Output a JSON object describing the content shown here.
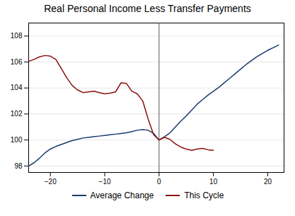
{
  "chart_data": {
    "type": "line",
    "title": "Real Personal Income Less Transfer Payments",
    "x": [
      -24,
      -23,
      -22,
      -21,
      -20,
      -19,
      -18,
      -17,
      -16,
      -15,
      -14,
      -13,
      -12,
      -11,
      -10,
      -9,
      -8,
      -7,
      -6,
      -5,
      -4,
      -3,
      -2,
      -1,
      0,
      1,
      2,
      3,
      4,
      5,
      6,
      7,
      8,
      9,
      10,
      11,
      12,
      13,
      14,
      15,
      16,
      17,
      18,
      19,
      20,
      21,
      22
    ],
    "series": [
      {
        "name": "Average Change",
        "color": "#1a3a6e",
        "values": [
          98.0,
          98.25,
          98.6,
          99.0,
          99.3,
          99.5,
          99.65,
          99.8,
          99.95,
          100.05,
          100.15,
          100.2,
          100.25,
          100.3,
          100.35,
          100.4,
          100.45,
          100.5,
          100.55,
          100.65,
          100.75,
          100.8,
          100.75,
          100.5,
          100.0,
          100.25,
          100.55,
          101.0,
          101.45,
          101.85,
          102.3,
          102.75,
          103.1,
          103.45,
          103.75,
          104.05,
          104.4,
          104.75,
          105.1,
          105.45,
          105.8,
          106.1,
          106.4,
          106.65,
          106.9,
          107.1,
          107.3
        ]
      },
      {
        "name": "This Cycle",
        "color": "#8b1010",
        "values": [
          106.05,
          106.2,
          106.4,
          106.5,
          106.45,
          106.2,
          105.5,
          104.8,
          104.2,
          103.85,
          103.65,
          103.7,
          103.75,
          103.65,
          103.55,
          103.6,
          103.7,
          104.4,
          104.35,
          103.75,
          103.55,
          103.0,
          101.6,
          100.4,
          100.0,
          100.2,
          100.05,
          99.7,
          99.45,
          99.3,
          99.2,
          99.3,
          99.35,
          99.25,
          99.2,
          null,
          null,
          null,
          null,
          null,
          null,
          null,
          null,
          null,
          null,
          null,
          null
        ]
      }
    ],
    "vline_x": 0,
    "xlim": [
      -24,
      23
    ],
    "xticks": [
      -20,
      -10,
      0,
      10,
      20
    ],
    "ylim": [
      97.5,
      109
    ],
    "yticks": [
      98,
      100,
      102,
      104,
      106,
      108
    ],
    "grid": true,
    "legend": "bottom"
  }
}
